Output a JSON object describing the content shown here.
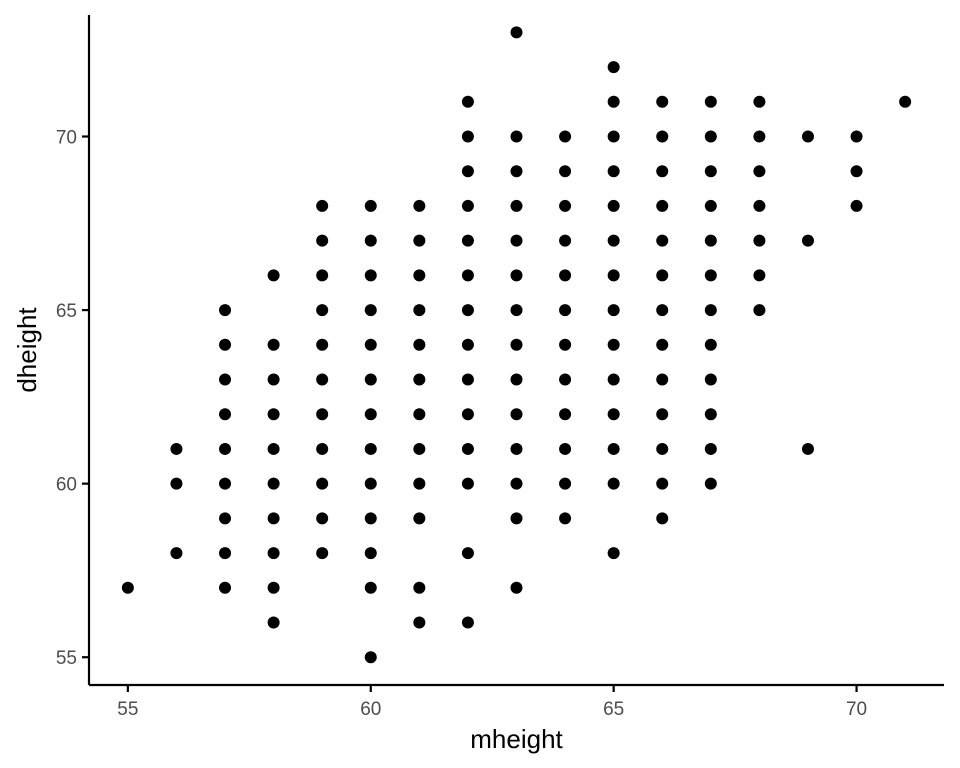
{
  "chart_data": {
    "type": "scatter",
    "title": "",
    "xlabel": "mheight",
    "ylabel": "dheight",
    "xlim": [
      54.2,
      71.8
    ],
    "ylim": [
      54.2,
      73.5
    ],
    "x_ticks": [
      55,
      60,
      65,
      70
    ],
    "y_ticks": [
      55,
      60,
      65,
      70
    ],
    "grid": false,
    "legend": "none",
    "point_color": "#000000",
    "points": [
      [
        55,
        57
      ],
      [
        56,
        58
      ],
      [
        56,
        60
      ],
      [
        56,
        61
      ],
      [
        57,
        57
      ],
      [
        57,
        58
      ],
      [
        57,
        59
      ],
      [
        57,
        60
      ],
      [
        57,
        61
      ],
      [
        57,
        62
      ],
      [
        57,
        63
      ],
      [
        57,
        64
      ],
      [
        57,
        65
      ],
      [
        58,
        56
      ],
      [
        58,
        57
      ],
      [
        58,
        58
      ],
      [
        58,
        59
      ],
      [
        58,
        60
      ],
      [
        58,
        61
      ],
      [
        58,
        62
      ],
      [
        58,
        63
      ],
      [
        58,
        64
      ],
      [
        58,
        66
      ],
      [
        59,
        58
      ],
      [
        59,
        59
      ],
      [
        59,
        60
      ],
      [
        59,
        61
      ],
      [
        59,
        62
      ],
      [
        59,
        63
      ],
      [
        59,
        64
      ],
      [
        59,
        65
      ],
      [
        59,
        66
      ],
      [
        59,
        67
      ],
      [
        59,
        68
      ],
      [
        60,
        55
      ],
      [
        60,
        57
      ],
      [
        60,
        58
      ],
      [
        60,
        59
      ],
      [
        60,
        60
      ],
      [
        60,
        61
      ],
      [
        60,
        62
      ],
      [
        60,
        63
      ],
      [
        60,
        64
      ],
      [
        60,
        65
      ],
      [
        60,
        66
      ],
      [
        60,
        67
      ],
      [
        60,
        68
      ],
      [
        61,
        56
      ],
      [
        61,
        57
      ],
      [
        61,
        59
      ],
      [
        61,
        60
      ],
      [
        61,
        61
      ],
      [
        61,
        62
      ],
      [
        61,
        63
      ],
      [
        61,
        64
      ],
      [
        61,
        65
      ],
      [
        61,
        66
      ],
      [
        61,
        67
      ],
      [
        61,
        68
      ],
      [
        62,
        56
      ],
      [
        62,
        58
      ],
      [
        62,
        60
      ],
      [
        62,
        61
      ],
      [
        62,
        62
      ],
      [
        62,
        63
      ],
      [
        62,
        64
      ],
      [
        62,
        65
      ],
      [
        62,
        66
      ],
      [
        62,
        67
      ],
      [
        62,
        68
      ],
      [
        62,
        69
      ],
      [
        62,
        70
      ],
      [
        62,
        71
      ],
      [
        63,
        57
      ],
      [
        63,
        59
      ],
      [
        63,
        60
      ],
      [
        63,
        61
      ],
      [
        63,
        62
      ],
      [
        63,
        63
      ],
      [
        63,
        64
      ],
      [
        63,
        65
      ],
      [
        63,
        66
      ],
      [
        63,
        67
      ],
      [
        63,
        68
      ],
      [
        63,
        69
      ],
      [
        63,
        70
      ],
      [
        63,
        73
      ],
      [
        64,
        59
      ],
      [
        64,
        60
      ],
      [
        64,
        61
      ],
      [
        64,
        62
      ],
      [
        64,
        63
      ],
      [
        64,
        64
      ],
      [
        64,
        65
      ],
      [
        64,
        66
      ],
      [
        64,
        67
      ],
      [
        64,
        68
      ],
      [
        64,
        69
      ],
      [
        64,
        70
      ],
      [
        65,
        58
      ],
      [
        65,
        60
      ],
      [
        65,
        61
      ],
      [
        65,
        62
      ],
      [
        65,
        63
      ],
      [
        65,
        64
      ],
      [
        65,
        65
      ],
      [
        65,
        66
      ],
      [
        65,
        67
      ],
      [
        65,
        68
      ],
      [
        65,
        69
      ],
      [
        65,
        70
      ],
      [
        65,
        71
      ],
      [
        65,
        72
      ],
      [
        66,
        59
      ],
      [
        66,
        60
      ],
      [
        66,
        61
      ],
      [
        66,
        62
      ],
      [
        66,
        63
      ],
      [
        66,
        64
      ],
      [
        66,
        65
      ],
      [
        66,
        66
      ],
      [
        66,
        67
      ],
      [
        66,
        68
      ],
      [
        66,
        69
      ],
      [
        66,
        70
      ],
      [
        66,
        71
      ],
      [
        67,
        60
      ],
      [
        67,
        61
      ],
      [
        67,
        62
      ],
      [
        67,
        63
      ],
      [
        67,
        64
      ],
      [
        67,
        65
      ],
      [
        67,
        66
      ],
      [
        67,
        67
      ],
      [
        67,
        68
      ],
      [
        67,
        69
      ],
      [
        67,
        70
      ],
      [
        67,
        71
      ],
      [
        68,
        65
      ],
      [
        68,
        66
      ],
      [
        68,
        67
      ],
      [
        68,
        68
      ],
      [
        68,
        69
      ],
      [
        68,
        70
      ],
      [
        68,
        71
      ],
      [
        69,
        61
      ],
      [
        69,
        67
      ],
      [
        69,
        70
      ],
      [
        70,
        68
      ],
      [
        70,
        69
      ],
      [
        70,
        70
      ],
      [
        71,
        71
      ]
    ]
  }
}
